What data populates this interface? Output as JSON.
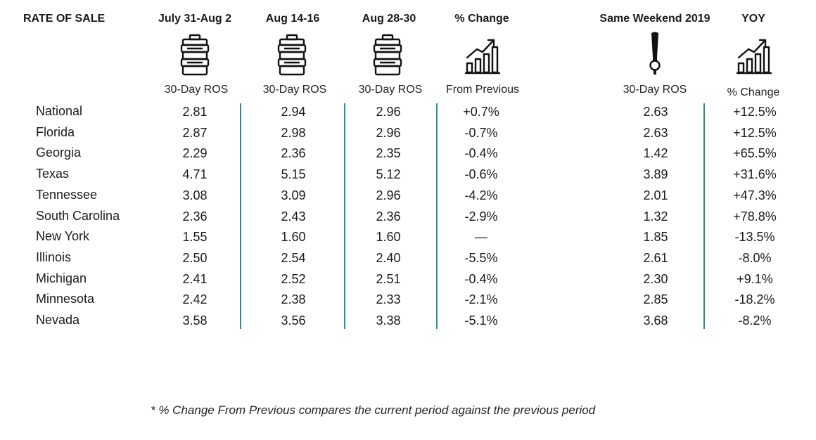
{
  "header": {
    "title": "RATE OF SALE",
    "columns": [
      {
        "label": "July 31-Aug 2",
        "sub": "30-Day ROS",
        "icon": "keg-icon"
      },
      {
        "label": "Aug 14-16",
        "sub": "30-Day ROS",
        "icon": "keg-icon"
      },
      {
        "label": "Aug 28-30",
        "sub": "30-Day ROS",
        "icon": "keg-icon"
      },
      {
        "label": "% Change",
        "sub": "From Previous",
        "icon": "growth-chart-icon"
      },
      {
        "label": "Same Weekend 2019",
        "sub": "30-Day ROS",
        "icon": "beer-tap-icon"
      },
      {
        "label": "YOY",
        "sub": "% Change",
        "icon": "growth-chart-icon"
      }
    ]
  },
  "rows": [
    {
      "state": "National",
      "values": [
        "2.81",
        "2.94",
        "2.96",
        "+0.7%",
        "2.63",
        "+12.5%"
      ]
    },
    {
      "state": "Florida",
      "values": [
        "2.87",
        "2.98",
        "2.96",
        "-0.7%",
        "2.63",
        "+12.5%"
      ]
    },
    {
      "state": "Georgia",
      "values": [
        "2.29",
        "2.36",
        "2.35",
        "-0.4%",
        "1.42",
        "+65.5%"
      ]
    },
    {
      "state": "Texas",
      "values": [
        "4.71",
        "5.15",
        "5.12",
        "-0.6%",
        "3.89",
        "+31.6%"
      ]
    },
    {
      "state": "Tennessee",
      "values": [
        "3.08",
        "3.09",
        "2.96",
        "-4.2%",
        "2.01",
        "+47.3%"
      ]
    },
    {
      "state": "South Carolina",
      "values": [
        "2.36",
        "2.43",
        "2.36",
        "-2.9%",
        "1.32",
        "+78.8%"
      ]
    },
    {
      "state": "New York",
      "values": [
        "1.55",
        "1.60",
        "1.60",
        "—",
        "1.85",
        "-13.5%"
      ]
    },
    {
      "state": "Illinois",
      "values": [
        "2.50",
        "2.54",
        "2.40",
        "-5.5%",
        "2.61",
        "-8.0%"
      ]
    },
    {
      "state": "Michigan",
      "values": [
        "2.41",
        "2.52",
        "2.51",
        "-0.4%",
        "2.30",
        "+9.1%"
      ]
    },
    {
      "state": "Minnesota",
      "values": [
        "2.42",
        "2.38",
        "2.33",
        "-2.1%",
        "2.85",
        "-18.2%"
      ]
    },
    {
      "state": "Nevada",
      "values": [
        "3.58",
        "3.56",
        "3.38",
        "-5.1%",
        "3.68",
        "-8.2%"
      ]
    }
  ],
  "footnote": "* % Change From Previous compares the current period against the previous period",
  "colors": {
    "divider": "#2a8f98",
    "text": "#1a1a1a"
  }
}
